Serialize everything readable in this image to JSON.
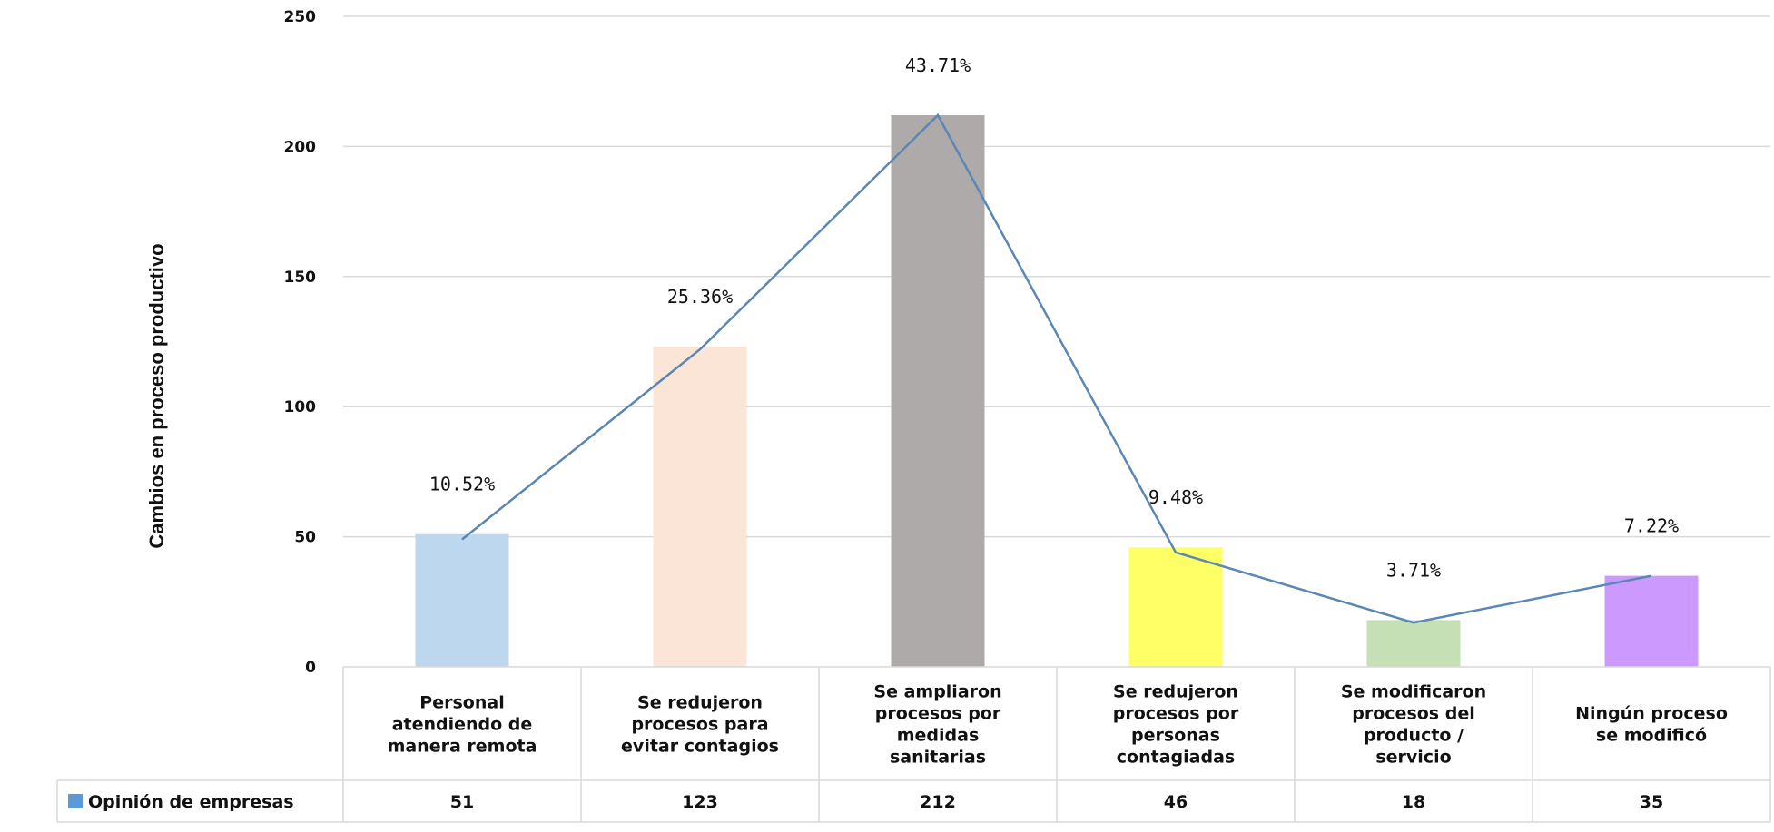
{
  "chart_data": {
    "type": "bar",
    "ylabel": "Cambios en proceso productivo",
    "ylim": [
      0,
      250
    ],
    "yticks": [
      0,
      50,
      100,
      150,
      200,
      250
    ],
    "grid": true,
    "categories": [
      [
        "Personal",
        "atendiendo de",
        "manera remota"
      ],
      [
        "Se redujeron",
        "procesos para",
        "evitar contagios"
      ],
      [
        "Se ampliaron",
        "procesos por",
        "medidas",
        "sanitarias"
      ],
      [
        "Se redujeron",
        "procesos por",
        "personas",
        "contagiadas"
      ],
      [
        "Se modificaron",
        "procesos del",
        "producto /",
        "servicio"
      ],
      [
        "Ningún proceso",
        "se modificó"
      ]
    ],
    "series": [
      {
        "name": "Opinión de empresas",
        "values": [
          51,
          123,
          212,
          46,
          18,
          35
        ],
        "value_labels": [
          "51",
          "123",
          "212",
          "46",
          "18",
          "35"
        ]
      }
    ],
    "percent_labels": [
      "10.52%",
      "25.36%",
      "43.71%",
      "9.48%",
      "3.71%",
      "7.22%"
    ],
    "line_values": [
      49,
      122,
      212,
      44,
      17,
      35
    ],
    "bar_colors": [
      "#BDD7EE",
      "#FBE5D6",
      "#AEAAAA",
      "#FFFF66",
      "#C5E0B4",
      "#CC99FF"
    ],
    "legend_color": "#5B9BD5",
    "line_color": "#5B87B5",
    "grid_color": "#D9D9D9"
  }
}
